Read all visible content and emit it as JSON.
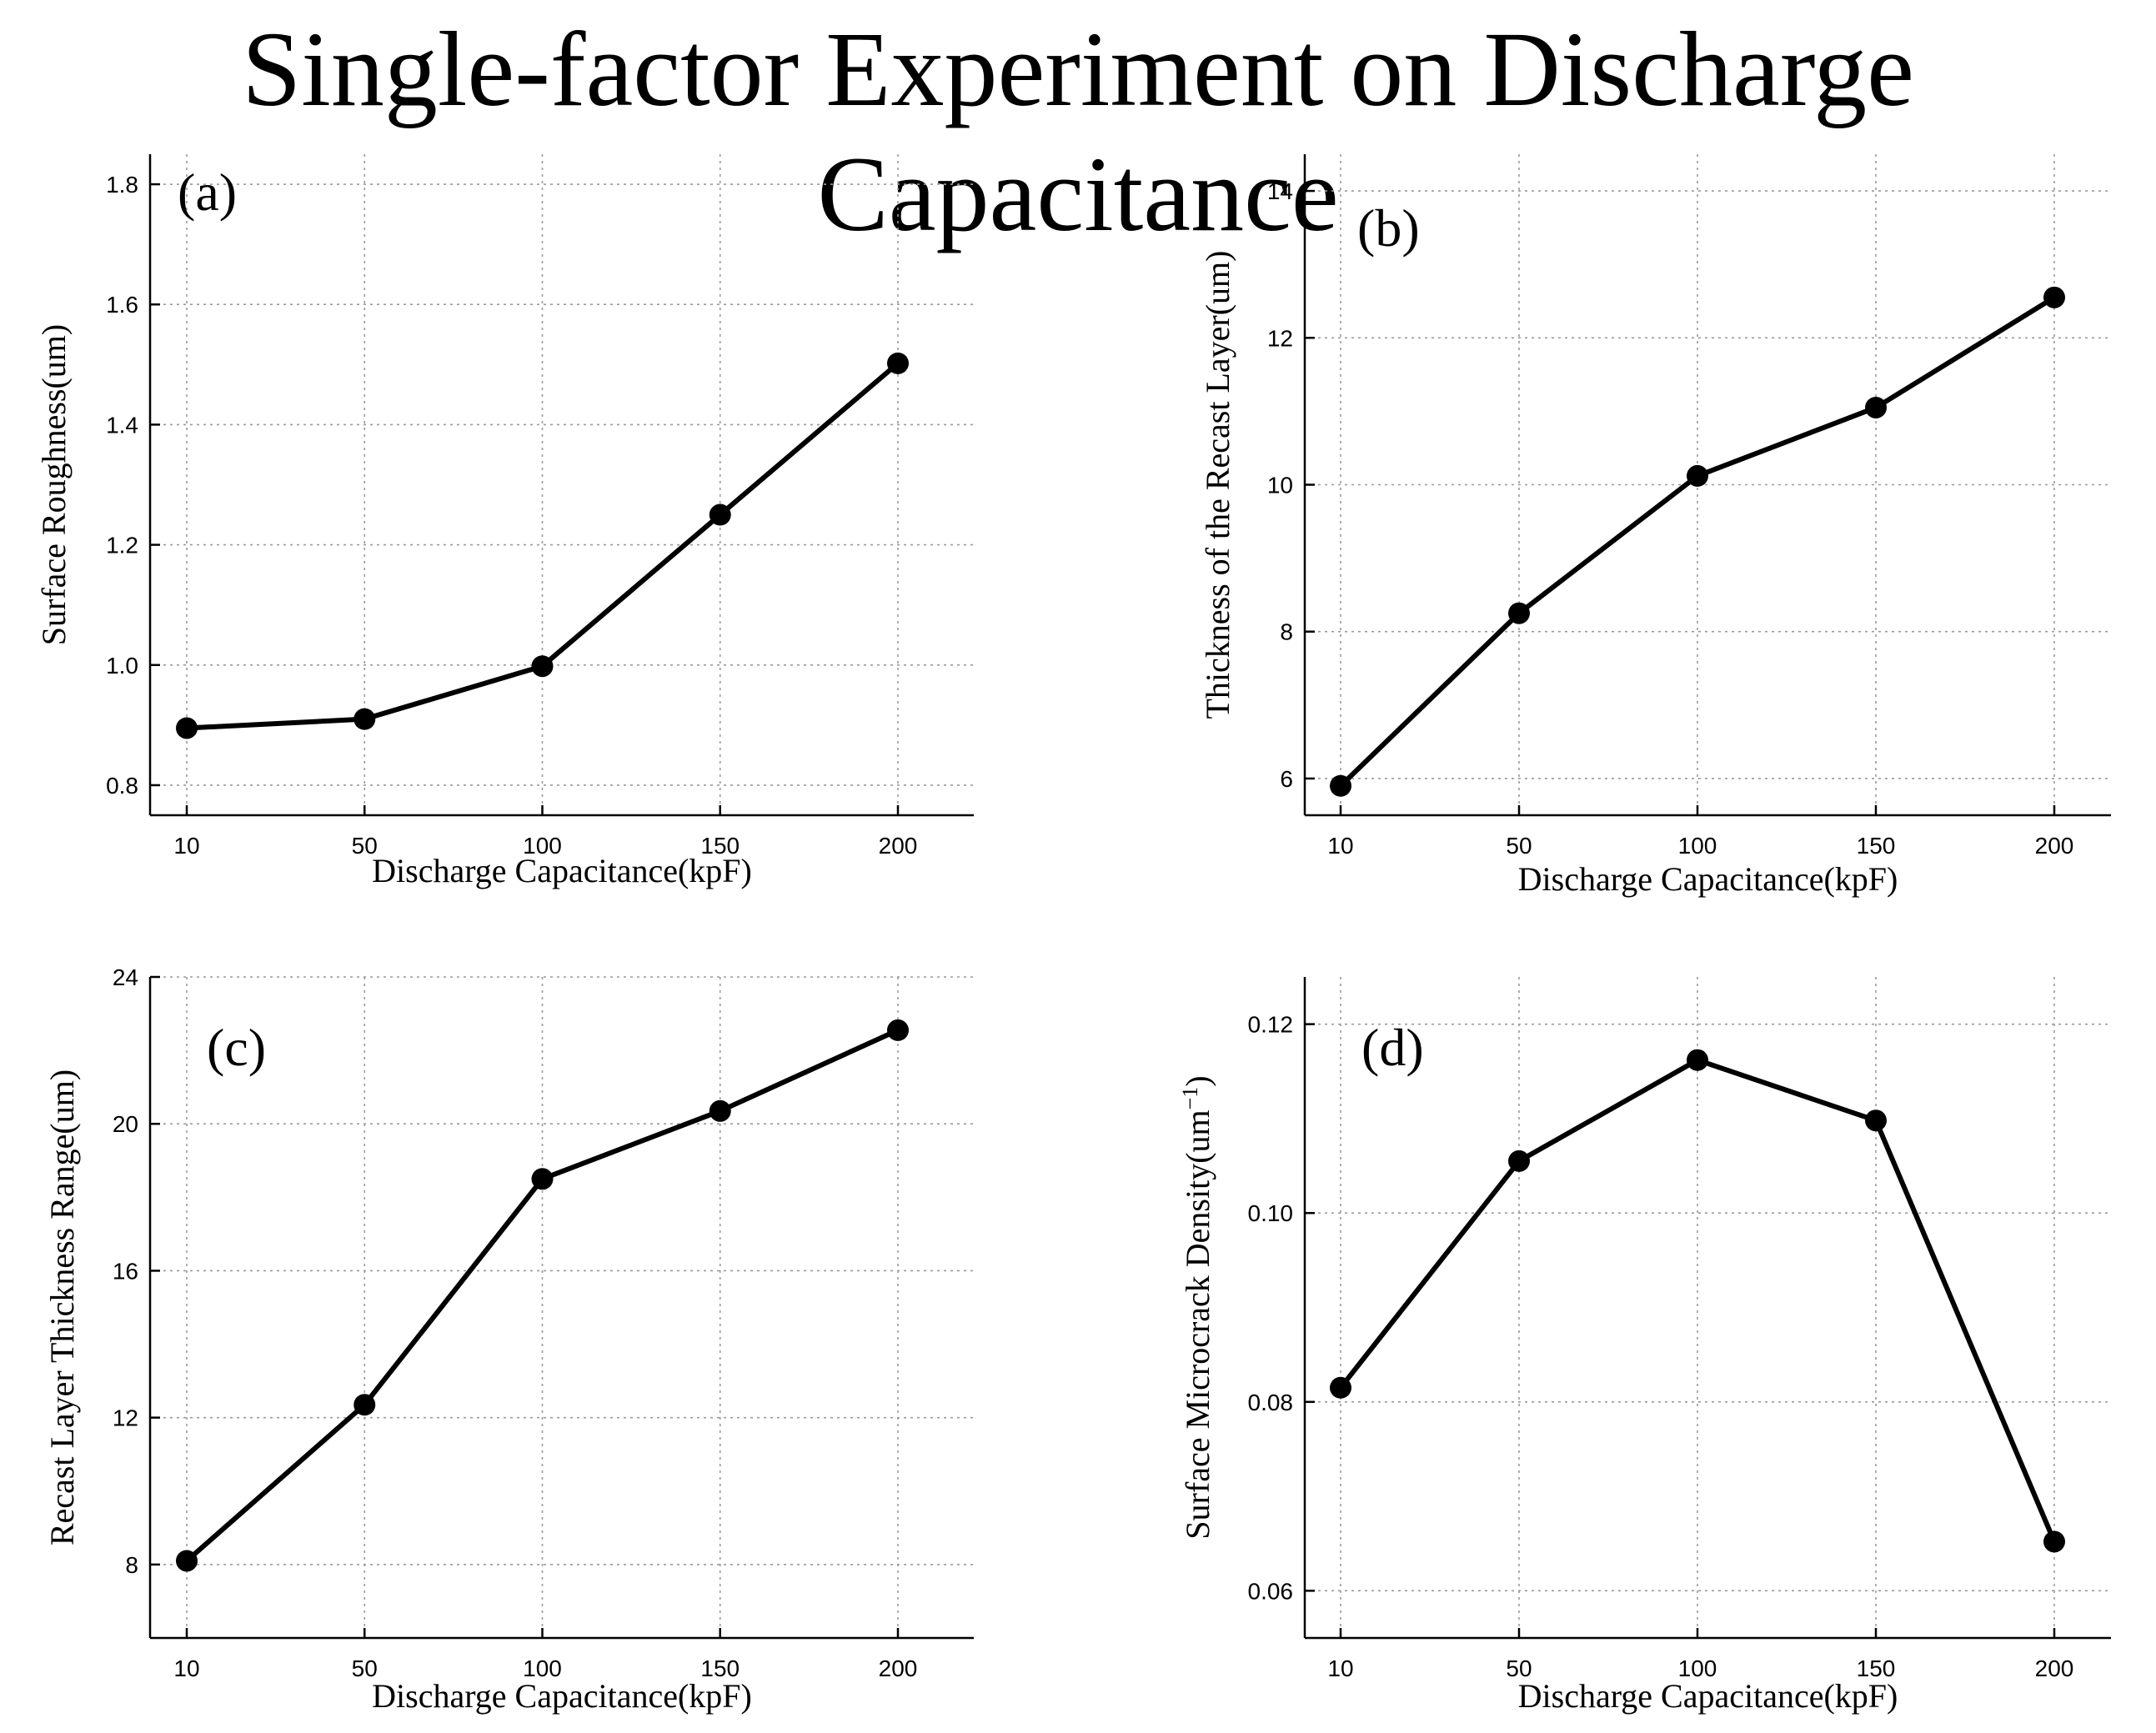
{
  "figure_title": "Single-factor Experiment on Discharge Capacitance",
  "chart_data": [
    {
      "type": "line",
      "panel_label": "(a)",
      "categories": [
        "10",
        "50",
        "100",
        "150",
        "200"
      ],
      "values": [
        0.895,
        0.91,
        0.998,
        1.25,
        1.502
      ],
      "xlabel": "Discharge Capacitance(kpF)",
      "ylabel": "Surface Roughness(um)",
      "ylim": [
        0.75,
        1.85
      ],
      "yticks": [
        "0.8",
        "1.0",
        "1.2",
        "1.4",
        "1.6",
        "1.8"
      ],
      "grid": true,
      "color": "#000000"
    },
    {
      "type": "line",
      "panel_label": "(b)",
      "categories": [
        "10",
        "50",
        "100",
        "150",
        "200"
      ],
      "values": [
        5.9,
        8.25,
        10.12,
        11.05,
        12.55
      ],
      "xlabel": "Discharge Capacitance(kpF)",
      "ylabel": "Thickness of the Recast Layer(um)",
      "ylim": [
        5.5,
        14.5
      ],
      "yticks": [
        "6",
        "8",
        "10",
        "12",
        "14"
      ],
      "grid": true,
      "color": "#000000"
    },
    {
      "type": "line",
      "panel_label": "(c)",
      "categories": [
        "10",
        "50",
        "100",
        "150",
        "200"
      ],
      "values": [
        8.1,
        12.35,
        18.5,
        20.35,
        22.55
      ],
      "xlabel": "Discharge Capacitance(kpF)",
      "ylabel": "Recast Layer Thickness Range(um)",
      "ylim": [
        6.0,
        24.0
      ],
      "yticks": [
        "8",
        "12",
        "16",
        "20",
        "24"
      ],
      "grid": true,
      "color": "#000000"
    },
    {
      "type": "line",
      "panel_label": "(d)",
      "categories": [
        "10",
        "50",
        "100",
        "150",
        "200"
      ],
      "values": [
        0.0815,
        0.1055,
        0.1162,
        0.1098,
        0.0652
      ],
      "xlabel": "Discharge Capacitance(kpF)",
      "ylabel": "Surface Microcrack Density(um",
      "ylabel_superscript": "−1",
      "ylabel_suffix": ")",
      "ylim": [
        0.055,
        0.125
      ],
      "yticks": [
        "0.06",
        "0.08",
        "0.10",
        "0.12"
      ],
      "grid": true,
      "color": "#000000"
    }
  ]
}
